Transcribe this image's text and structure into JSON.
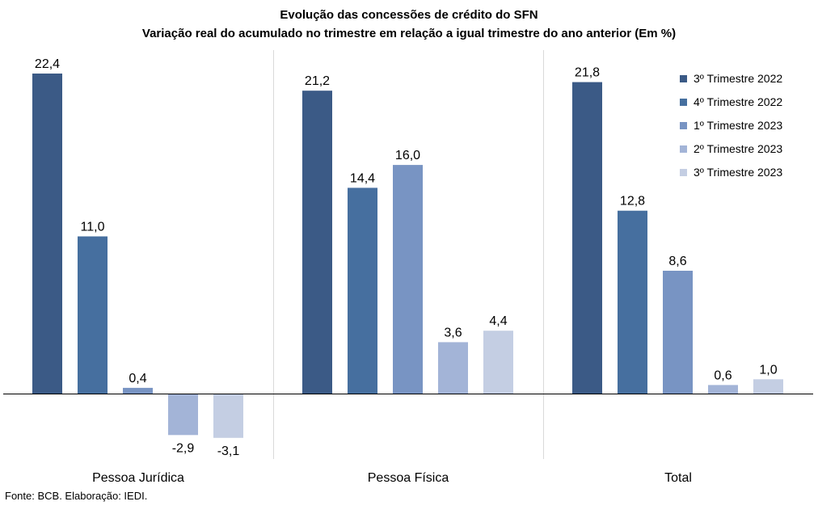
{
  "chart_data": {
    "type": "bar",
    "title": "Evolução das concessões de crédito do SFN",
    "subtitle": "Variação real do acumulado no trimestre em relação a igual trimestre do ano anterior (Em %)",
    "categories": [
      "Pessoa Jurídica",
      "Pessoa Física",
      "Total"
    ],
    "series": [
      {
        "name": "3º Trimestre 2022",
        "color": "#3b5a86",
        "values": [
          22.4,
          21.2,
          21.8
        ],
        "labels": [
          "22,4",
          "21,2",
          "21,8"
        ]
      },
      {
        "name": "4º Trimestre 2022",
        "color": "#466f9f",
        "values": [
          11.0,
          14.4,
          12.8
        ],
        "labels": [
          "11,0",
          "14,4",
          "12,8"
        ]
      },
      {
        "name": "1º Trimestre 2023",
        "color": "#7894c3",
        "values": [
          0.4,
          16.0,
          8.6
        ],
        "labels": [
          "0,4",
          "16,0",
          "8,6"
        ]
      },
      {
        "name": "2º Trimestre 2023",
        "color": "#a3b4d7",
        "values": [
          -2.9,
          3.6,
          0.6
        ],
        "labels": [
          "-2,9",
          "3,6",
          "0,6"
        ]
      },
      {
        "name": "3º Trimestre 2023",
        "color": "#c4cee3",
        "values": [
          -3.1,
          4.4,
          1.0
        ],
        "labels": [
          "-3,1",
          "4,4",
          "1,0"
        ]
      }
    ],
    "ylim": [
      -4.5,
      24.5
    ],
    "grid": false,
    "legend_position": "top-right"
  },
  "source": "Fonte: BCB. Elaboração: IEDI."
}
